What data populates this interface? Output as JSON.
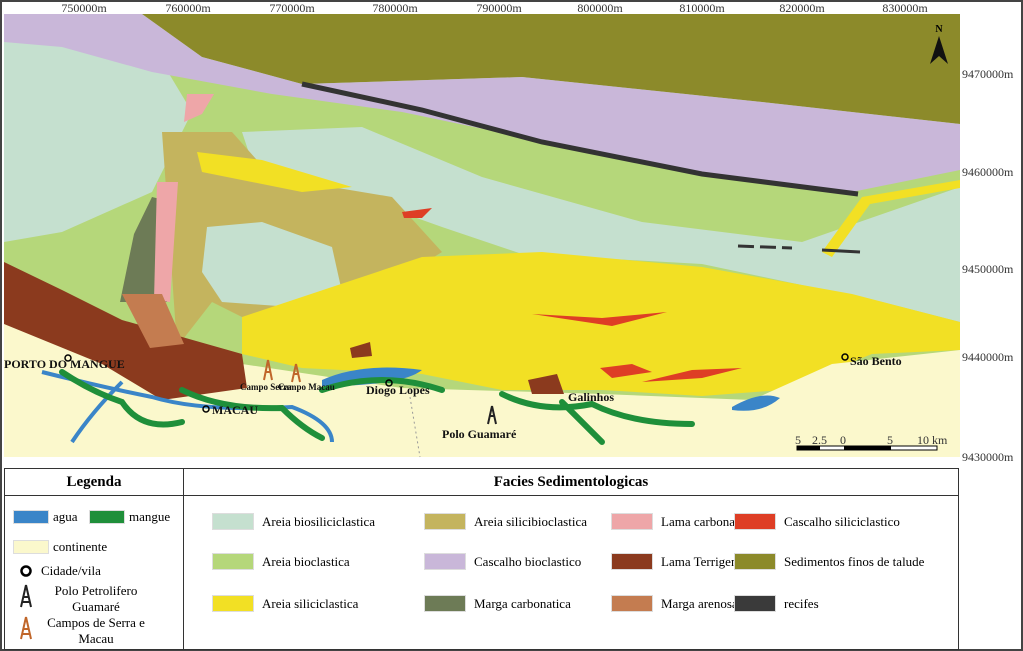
{
  "map": {
    "x_labels": [
      "750000m",
      "760000m",
      "770000m",
      "780000m",
      "790000m",
      "800000m",
      "810000m",
      "820000m",
      "830000m"
    ],
    "y_labels": [
      "9470000m",
      "9460000m",
      "9450000m",
      "9440000m",
      "9430000m"
    ],
    "north": "N",
    "places": {
      "porto": "PORTO DO MANGUE",
      "macau": "MACAU",
      "campo_serra": "Campo Serra",
      "campo_macau": "Campo Macau",
      "diogo": "Diogo Lopes",
      "galinhos": "Galinhos",
      "guamare": "Polo Guamaré",
      "sao_bento": "São Bento"
    },
    "scale_labels": [
      "5",
      "2.5",
      "0",
      "5",
      "10 km"
    ]
  },
  "legend": {
    "title": "Legenda",
    "items": [
      {
        "label": "agua",
        "color": "#3a85c8"
      },
      {
        "label": "mangue",
        "color": "#1f8f3a"
      },
      {
        "label": "continente",
        "color": "#fbf8cc"
      },
      {
        "label": "Cidade/vila"
      },
      {
        "label": "Polo Petrolifero Guamaré",
        "color": "#222222"
      },
      {
        "label": "Campos de Serra e Macau",
        "color": "#c0662a"
      }
    ]
  },
  "facies": {
    "title": "Facies Sedimentologicas",
    "items": [
      {
        "label": "Areia biosiliciclastica",
        "color": "#c5e0cf"
      },
      {
        "label": "Areia silicibioclastica",
        "color": "#c4b45e"
      },
      {
        "label": "Lama carbonatica",
        "color": "#eea6a8"
      },
      {
        "label": "Cascalho siliciclastico",
        "color": "#de3e25"
      },
      {
        "label": "Areia bioclastica",
        "color": "#b5d77a"
      },
      {
        "label": "Cascalho bioclastico",
        "color": "#c9b7d9"
      },
      {
        "label": "Lama Terrigena",
        "color": "#8b3a1e"
      },
      {
        "label": "Sedimentos finos de talude",
        "color": "#8c8a2a"
      },
      {
        "label": "Areia siliciclastica",
        "color": "#f2e024"
      },
      {
        "label": "Marga carbonatica",
        "color": "#6d7b56"
      },
      {
        "label": "Marga arenosa",
        "color": "#c47c50"
      },
      {
        "label": "recifes",
        "color": "#3a3a3a"
      }
    ]
  }
}
